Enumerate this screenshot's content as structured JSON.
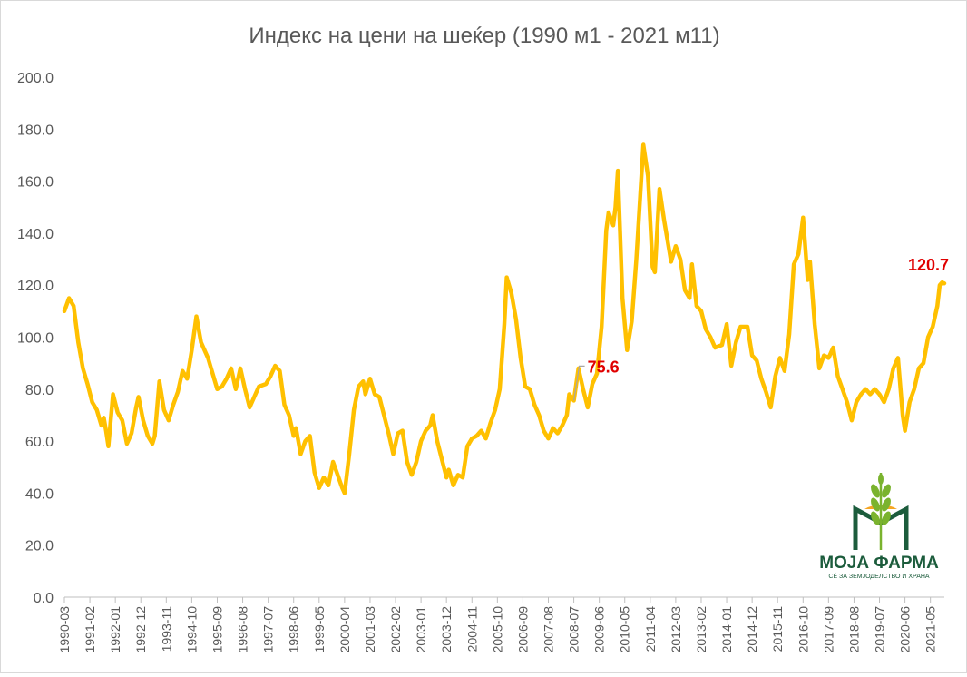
{
  "chart_data": {
    "type": "line",
    "title": "Индекс на цени на шеќер (1990 м1 - 2021 м11)",
    "xlabel": "",
    "ylabel": "",
    "ylim": [
      0,
      200
    ],
    "yticks": [
      "0.0",
      "20.0",
      "40.0",
      "60.0",
      "80.0",
      "100.0",
      "120.0",
      "140.0",
      "160.0",
      "180.0",
      "200.0"
    ],
    "x_tick_labels": [
      "1990-03",
      "1991-02",
      "1992-01",
      "1992-12",
      "1993-11",
      "1994-10",
      "1995-09",
      "1996-08",
      "1997-07",
      "1998-06",
      "1999-05",
      "2000-04",
      "2001-03",
      "2002-02",
      "2003-01",
      "2003-12",
      "2004-11",
      "2005-10",
      "2006-09",
      "2007-08",
      "2008-07",
      "2009-06",
      "2010-05",
      "2011-04",
      "2012-03",
      "2013-02",
      "2014-01",
      "2014-12",
      "2015-11",
      "2016-10",
      "2017-09",
      "2018-08",
      "2019-07",
      "2020-06",
      "2021-05"
    ],
    "grid": false,
    "legend": "none",
    "series": [
      {
        "color": "#ffc000",
        "points": [
          [
            "1990-03",
            110
          ],
          [
            "1990-05",
            115
          ],
          [
            "1990-07",
            112
          ],
          [
            "1990-09",
            98
          ],
          [
            "1990-11",
            88
          ],
          [
            "1991-01",
            82
          ],
          [
            "1991-03",
            75
          ],
          [
            "1991-05",
            72
          ],
          [
            "1991-07",
            66
          ],
          [
            "1991-08",
            69
          ],
          [
            "1991-09",
            64
          ],
          [
            "1991-10",
            58
          ],
          [
            "1991-12",
            78
          ],
          [
            "1992-02",
            71
          ],
          [
            "1992-04",
            68
          ],
          [
            "1992-06",
            59
          ],
          [
            "1992-08",
            63
          ],
          [
            "1992-10",
            73
          ],
          [
            "1992-11",
            77
          ],
          [
            "1993-01",
            68
          ],
          [
            "1993-03",
            62
          ],
          [
            "1993-05",
            59
          ],
          [
            "1993-06",
            62
          ],
          [
            "1993-08",
            83
          ],
          [
            "1993-10",
            72
          ],
          [
            "1993-12",
            68
          ],
          [
            "1994-02",
            74
          ],
          [
            "1994-04",
            79
          ],
          [
            "1994-06",
            87
          ],
          [
            "1994-08",
            84
          ],
          [
            "1994-10",
            95
          ],
          [
            "1994-12",
            108
          ],
          [
            "1995-02",
            98
          ],
          [
            "1995-05",
            92
          ],
          [
            "1995-07",
            86
          ],
          [
            "1995-09",
            80
          ],
          [
            "1995-11",
            81
          ],
          [
            "1996-01",
            84
          ],
          [
            "1996-03",
            88
          ],
          [
            "1996-05",
            80
          ],
          [
            "1996-07",
            88
          ],
          [
            "1996-09",
            80
          ],
          [
            "1996-11",
            73
          ],
          [
            "1997-01",
            77
          ],
          [
            "1997-03",
            81
          ],
          [
            "1997-06",
            82
          ],
          [
            "1997-08",
            85
          ],
          [
            "1997-10",
            89
          ],
          [
            "1997-12",
            87
          ],
          [
            "1998-02",
            74
          ],
          [
            "1998-04",
            70
          ],
          [
            "1998-06",
            62
          ],
          [
            "1998-07",
            65
          ],
          [
            "1998-09",
            55
          ],
          [
            "1998-11",
            60
          ],
          [
            "1999-01",
            62
          ],
          [
            "1999-03",
            48
          ],
          [
            "1999-05",
            42
          ],
          [
            "1999-07",
            46
          ],
          [
            "1999-09",
            43
          ],
          [
            "1999-11",
            52
          ],
          [
            "2000-01",
            47
          ],
          [
            "2000-03",
            42
          ],
          [
            "2000-04",
            40
          ],
          [
            "2000-06",
            55
          ],
          [
            "2000-08",
            72
          ],
          [
            "2000-10",
            81
          ],
          [
            "2000-12",
            83
          ],
          [
            "2001-01",
            78
          ],
          [
            "2001-03",
            84
          ],
          [
            "2001-05",
            78
          ],
          [
            "2001-07",
            77
          ],
          [
            "2001-09",
            70
          ],
          [
            "2001-11",
            63
          ],
          [
            "2002-01",
            55
          ],
          [
            "2002-03",
            63
          ],
          [
            "2002-05",
            64
          ],
          [
            "2002-07",
            52
          ],
          [
            "2002-09",
            47
          ],
          [
            "2002-11",
            52
          ],
          [
            "2003-01",
            60
          ],
          [
            "2003-03",
            64
          ],
          [
            "2003-05",
            66
          ],
          [
            "2003-06",
            70
          ],
          [
            "2003-08",
            60
          ],
          [
            "2003-10",
            53
          ],
          [
            "2003-12",
            46
          ],
          [
            "2004-01",
            49
          ],
          [
            "2004-03",
            43
          ],
          [
            "2004-05",
            47
          ],
          [
            "2004-07",
            46
          ],
          [
            "2004-09",
            58
          ],
          [
            "2004-11",
            61
          ],
          [
            "2005-01",
            62
          ],
          [
            "2005-03",
            64
          ],
          [
            "2005-05",
            61
          ],
          [
            "2005-07",
            67
          ],
          [
            "2005-09",
            72
          ],
          [
            "2005-11",
            80
          ],
          [
            "2006-01",
            105
          ],
          [
            "2006-02",
            123
          ],
          [
            "2006-04",
            117
          ],
          [
            "2006-06",
            107
          ],
          [
            "2006-08",
            92
          ],
          [
            "2006-10",
            81
          ],
          [
            "2006-12",
            80
          ],
          [
            "2007-02",
            74
          ],
          [
            "2007-04",
            70
          ],
          [
            "2007-06",
            64
          ],
          [
            "2007-08",
            61
          ],
          [
            "2007-10",
            65
          ],
          [
            "2007-12",
            63
          ],
          [
            "2008-02",
            66
          ],
          [
            "2008-04",
            70
          ],
          [
            "2008-05",
            78
          ],
          [
            "2008-07",
            75.6
          ],
          [
            "2008-09",
            88
          ],
          [
            "2008-11",
            80
          ],
          [
            "2009-01",
            73
          ],
          [
            "2009-03",
            82
          ],
          [
            "2009-05",
            86
          ],
          [
            "2009-07",
            104
          ],
          [
            "2009-09",
            141
          ],
          [
            "2009-10",
            148
          ],
          [
            "2009-12",
            143
          ],
          [
            "2010-01",
            150
          ],
          [
            "2010-02",
            164
          ],
          [
            "2010-04",
            115
          ],
          [
            "2010-06",
            95
          ],
          [
            "2010-08",
            106
          ],
          [
            "2010-10",
            130
          ],
          [
            "2011-01",
            174
          ],
          [
            "2011-03",
            162
          ],
          [
            "2011-05",
            127
          ],
          [
            "2011-06",
            125
          ],
          [
            "2011-08",
            157
          ],
          [
            "2011-10",
            145
          ],
          [
            "2012-01",
            129
          ],
          [
            "2012-03",
            135
          ],
          [
            "2012-05",
            130
          ],
          [
            "2012-07",
            118
          ],
          [
            "2012-09",
            115
          ],
          [
            "2012-10",
            128
          ],
          [
            "2012-12",
            112
          ],
          [
            "2013-02",
            110
          ],
          [
            "2013-04",
            103
          ],
          [
            "2013-06",
            100
          ],
          [
            "2013-08",
            96
          ],
          [
            "2013-11",
            97
          ],
          [
            "2014-01",
            105
          ],
          [
            "2014-03",
            89
          ],
          [
            "2014-05",
            98
          ],
          [
            "2014-07",
            104
          ],
          [
            "2014-10",
            104
          ],
          [
            "2014-12",
            93
          ],
          [
            "2015-02",
            91
          ],
          [
            "2015-04",
            84
          ],
          [
            "2015-06",
            79
          ],
          [
            "2015-08",
            73
          ],
          [
            "2015-10",
            85
          ],
          [
            "2015-12",
            92
          ],
          [
            "2016-02",
            87
          ],
          [
            "2016-04",
            101
          ],
          [
            "2016-06",
            128
          ],
          [
            "2016-08",
            132
          ],
          [
            "2016-10",
            146
          ],
          [
            "2016-12",
            122
          ],
          [
            "2017-01",
            129
          ],
          [
            "2017-03",
            105
          ],
          [
            "2017-05",
            88
          ],
          [
            "2017-07",
            93
          ],
          [
            "2017-09",
            92
          ],
          [
            "2017-11",
            96
          ],
          [
            "2018-01",
            85
          ],
          [
            "2018-03",
            80
          ],
          [
            "2018-05",
            75
          ],
          [
            "2018-07",
            68
          ],
          [
            "2018-09",
            75
          ],
          [
            "2018-11",
            78
          ],
          [
            "2019-01",
            80
          ],
          [
            "2019-03",
            78
          ],
          [
            "2019-05",
            80
          ],
          [
            "2019-07",
            78
          ],
          [
            "2019-09",
            75
          ],
          [
            "2019-11",
            80
          ],
          [
            "2020-01",
            88
          ],
          [
            "2020-03",
            92
          ],
          [
            "2020-05",
            70
          ],
          [
            "2020-06",
            64
          ],
          [
            "2020-08",
            75
          ],
          [
            "2020-10",
            80
          ],
          [
            "2020-12",
            88
          ],
          [
            "2021-02",
            90
          ],
          [
            "2021-04",
            100
          ],
          [
            "2021-06",
            104
          ],
          [
            "2021-08",
            112
          ],
          [
            "2021-09",
            120
          ],
          [
            "2021-10",
            121
          ],
          [
            "2021-11",
            120.7
          ]
        ]
      }
    ],
    "annotations": [
      {
        "x": "2008-07",
        "y": 75.6,
        "text": "75.6",
        "color": "#e00000"
      },
      {
        "x": "2021-11",
        "y": 120.7,
        "text": "120.7",
        "color": "#e00000"
      }
    ]
  },
  "logo": {
    "name": "МОЈА ФАРМА",
    "tagline": "СЀ ЗА ЗЕМЈОДЕЛСТВО И ХРАНА",
    "colors": {
      "primary": "#1c5c3c",
      "accent": "#f5a623",
      "leaf": "#7ab32e"
    }
  }
}
